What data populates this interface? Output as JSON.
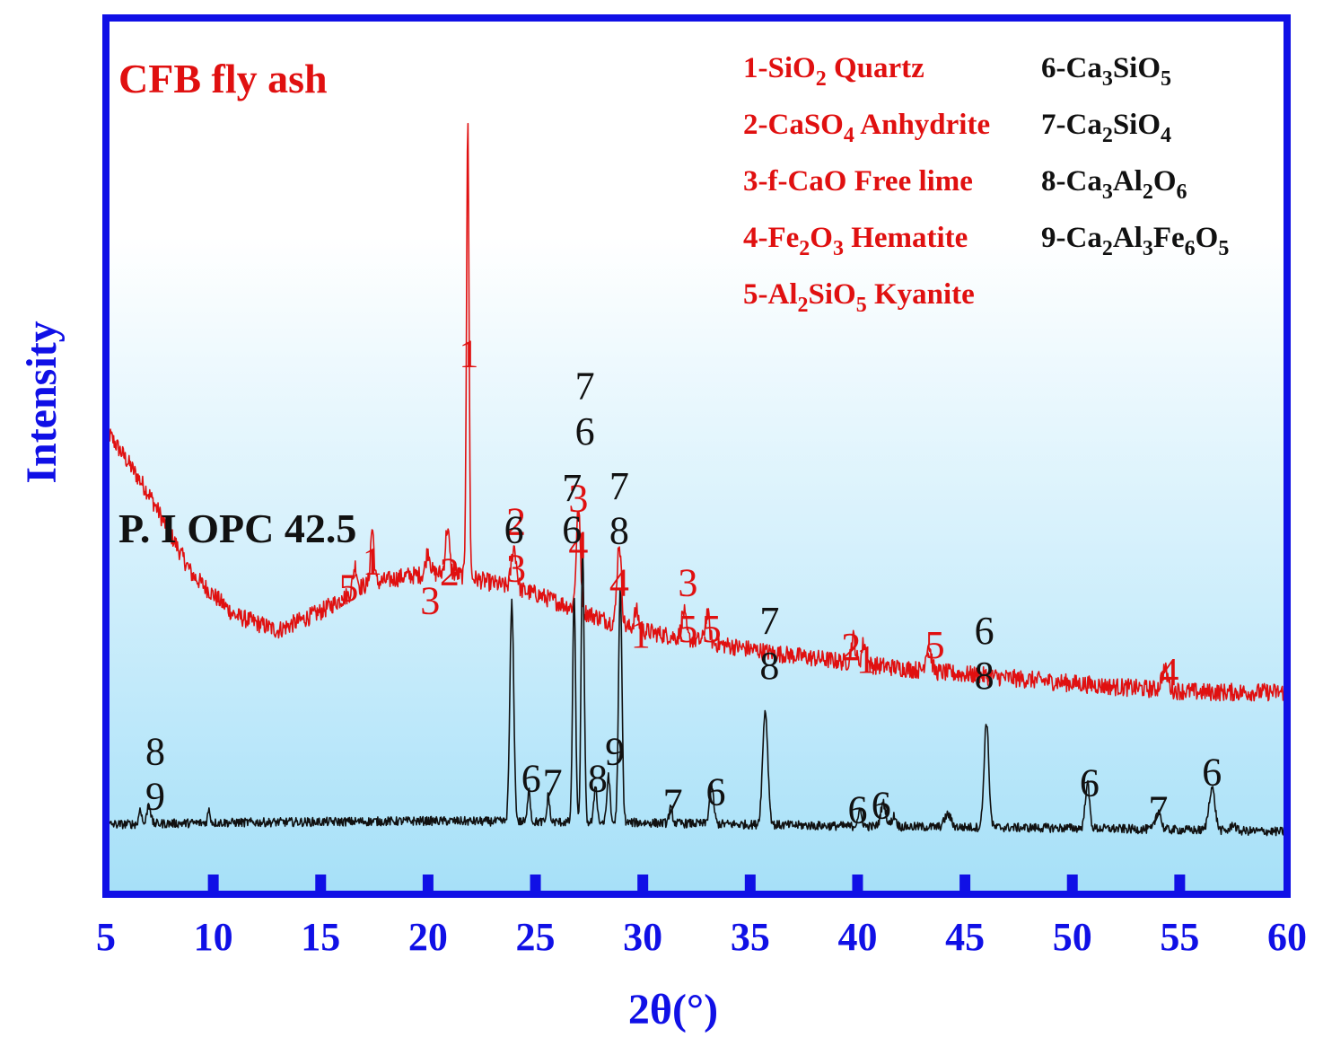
{
  "chart_data": {
    "type": "line",
    "xlabel": "2θ(°)",
    "ylabel": "Intensity",
    "xlim": [
      5,
      60
    ],
    "xticks": [
      5,
      10,
      15,
      20,
      25,
      30,
      35,
      40,
      45,
      50,
      55,
      60
    ],
    "grid": false,
    "colors": {
      "frame": "#1010e6",
      "fly_ash": "#e01010",
      "opc": "#111111",
      "bg_top": "#ffffff",
      "bg_bottom": "#a6e0f8"
    },
    "series": [
      {
        "name": "CFB fly ash",
        "color": "#e01010",
        "baseline": [
          [
            5,
            520
          ],
          [
            7,
            448
          ],
          [
            9,
            358
          ],
          [
            11,
            312
          ],
          [
            13,
            295
          ],
          [
            15,
            316
          ],
          [
            17,
            345
          ],
          [
            19,
            356
          ],
          [
            21,
            360
          ],
          [
            23,
            348
          ],
          [
            25,
            336
          ],
          [
            27,
            318
          ],
          [
            29,
            300
          ],
          [
            31,
            290
          ],
          [
            33,
            282
          ],
          [
            36,
            270
          ],
          [
            40,
            258
          ],
          [
            44,
            248
          ],
          [
            48,
            240
          ],
          [
            52,
            232
          ],
          [
            56,
            226
          ],
          [
            60,
            226
          ]
        ],
        "peaks": [
          {
            "x": 16.6,
            "h": 28,
            "w": 0.1
          },
          {
            "x": 17.4,
            "h": 62,
            "w": 0.08
          },
          {
            "x": 20.0,
            "h": 26,
            "w": 0.1
          },
          {
            "x": 20.9,
            "h": 50,
            "w": 0.09
          },
          {
            "x": 21.85,
            "h": 506,
            "w": 0.06
          },
          {
            "x": 24.0,
            "h": 46,
            "w": 0.12
          },
          {
            "x": 27.0,
            "h": 110,
            "w": 0.1
          },
          {
            "x": 28.9,
            "h": 92,
            "w": 0.1
          },
          {
            "x": 29.7,
            "h": 20,
            "w": 0.1
          },
          {
            "x": 31.9,
            "h": 30,
            "w": 0.1
          },
          {
            "x": 33.0,
            "h": 32,
            "w": 0.1
          },
          {
            "x": 39.8,
            "h": 28,
            "w": 0.1
          },
          {
            "x": 40.3,
            "h": 24,
            "w": 0.1
          },
          {
            "x": 43.3,
            "h": 30,
            "w": 0.12
          },
          {
            "x": 54.3,
            "h": 22,
            "w": 0.15
          }
        ],
        "noise": 10
      },
      {
        "name": "P. I OPC 42.5",
        "color": "#111111",
        "baseline": [
          [
            5,
            78
          ],
          [
            10,
            80
          ],
          [
            20,
            82
          ],
          [
            30,
            80
          ],
          [
            40,
            76
          ],
          [
            50,
            74
          ],
          [
            60,
            70
          ]
        ],
        "peaks": [
          {
            "x": 6.6,
            "h": 18,
            "w": 0.06
          },
          {
            "x": 7.0,
            "h": 24,
            "w": 0.08
          },
          {
            "x": 9.8,
            "h": 14,
            "w": 0.06
          },
          {
            "x": 23.9,
            "h": 244,
            "w": 0.09
          },
          {
            "x": 24.7,
            "h": 40,
            "w": 0.06
          },
          {
            "x": 25.6,
            "h": 30,
            "w": 0.06
          },
          {
            "x": 26.8,
            "h": 250,
            "w": 0.07
          },
          {
            "x": 27.2,
            "h": 305,
            "w": 0.07
          },
          {
            "x": 27.8,
            "h": 42,
            "w": 0.07
          },
          {
            "x": 28.4,
            "h": 54,
            "w": 0.07
          },
          {
            "x": 28.95,
            "h": 260,
            "w": 0.08
          },
          {
            "x": 31.3,
            "h": 16,
            "w": 0.08
          },
          {
            "x": 33.2,
            "h": 42,
            "w": 0.1
          },
          {
            "x": 35.7,
            "h": 128,
            "w": 0.12
          },
          {
            "x": 40.1,
            "h": 16,
            "w": 0.1
          },
          {
            "x": 41.2,
            "h": 26,
            "w": 0.12
          },
          {
            "x": 41.7,
            "h": 12,
            "w": 0.1
          },
          {
            "x": 44.2,
            "h": 14,
            "w": 0.15
          },
          {
            "x": 46.0,
            "h": 118,
            "w": 0.11
          },
          {
            "x": 50.7,
            "h": 50,
            "w": 0.1
          },
          {
            "x": 54.0,
            "h": 22,
            "w": 0.12
          },
          {
            "x": 56.5,
            "h": 48,
            "w": 0.14
          },
          {
            "x": 57.5,
            "h": 8,
            "w": 0.1
          }
        ],
        "noise": 5
      }
    ],
    "peak_labels": [
      {
        "text": "1",
        "x": 21.9,
        "y": 590,
        "color": "red"
      },
      {
        "text": "5",
        "x": 16.3,
        "y": 328,
        "color": "red"
      },
      {
        "text": "1",
        "x": 17.4,
        "y": 358,
        "color": "red"
      },
      {
        "text": "3",
        "x": 20.1,
        "y": 314,
        "color": "red"
      },
      {
        "text": "2",
        "x": 21.0,
        "y": 346,
        "color": "red"
      },
      {
        "text": "2",
        "x": 24.1,
        "y": 402,
        "color": "red"
      },
      {
        "text": "3",
        "x": 24.1,
        "y": 350,
        "color": "red"
      },
      {
        "text": "3",
        "x": 27.0,
        "y": 428,
        "color": "red"
      },
      {
        "text": "4",
        "x": 27.0,
        "y": 376,
        "color": "red"
      },
      {
        "text": "4",
        "x": 28.9,
        "y": 334,
        "color": "red"
      },
      {
        "text": "1",
        "x": 29.9,
        "y": 276,
        "color": "red"
      },
      {
        "text": "3",
        "x": 32.1,
        "y": 334,
        "color": "red"
      },
      {
        "text": "5",
        "x": 32.1,
        "y": 282,
        "color": "red"
      },
      {
        "text": "5",
        "x": 33.2,
        "y": 282,
        "color": "red"
      },
      {
        "text": "2",
        "x": 39.7,
        "y": 262,
        "color": "red"
      },
      {
        "text": "1",
        "x": 40.4,
        "y": 248,
        "color": "red"
      },
      {
        "text": "5",
        "x": 43.6,
        "y": 264,
        "color": "red"
      },
      {
        "text": "4",
        "x": 54.5,
        "y": 234,
        "color": "red"
      },
      {
        "text": "8",
        "x": 7.3,
        "y": 145,
        "color": "black"
      },
      {
        "text": "9",
        "x": 7.3,
        "y": 95,
        "color": "black"
      },
      {
        "text": "6",
        "x": 24.0,
        "y": 393,
        "color": "black"
      },
      {
        "text": "6",
        "x": 24.8,
        "y": 115,
        "color": "black"
      },
      {
        "text": "7",
        "x": 25.8,
        "y": 110,
        "color": "black"
      },
      {
        "text": "7",
        "x": 26.7,
        "y": 440,
        "color": "black"
      },
      {
        "text": "6",
        "x": 26.7,
        "y": 393,
        "color": "black"
      },
      {
        "text": "7",
        "x": 27.3,
        "y": 554,
        "color": "black"
      },
      {
        "text": "6",
        "x": 27.3,
        "y": 503,
        "color": "black"
      },
      {
        "text": "7",
        "x": 28.9,
        "y": 442,
        "color": "black"
      },
      {
        "text": "8",
        "x": 28.9,
        "y": 392,
        "color": "black"
      },
      {
        "text": "8",
        "x": 27.9,
        "y": 115,
        "color": "black"
      },
      {
        "text": "9",
        "x": 28.7,
        "y": 145,
        "color": "black"
      },
      {
        "text": "7",
        "x": 31.4,
        "y": 88,
        "color": "black"
      },
      {
        "text": "6",
        "x": 33.4,
        "y": 100,
        "color": "black"
      },
      {
        "text": "7",
        "x": 35.9,
        "y": 291,
        "color": "black"
      },
      {
        "text": "8",
        "x": 35.9,
        "y": 241,
        "color": "black"
      },
      {
        "text": "6",
        "x": 40.0,
        "y": 80,
        "color": "black"
      },
      {
        "text": "6",
        "x": 41.1,
        "y": 85,
        "color": "black"
      },
      {
        "text": "6",
        "x": 45.9,
        "y": 280,
        "color": "black"
      },
      {
        "text": "8",
        "x": 45.9,
        "y": 230,
        "color": "black"
      },
      {
        "text": "6",
        "x": 50.8,
        "y": 110,
        "color": "black"
      },
      {
        "text": "7",
        "x": 54.0,
        "y": 80,
        "color": "black"
      },
      {
        "text": "6",
        "x": 56.5,
        "y": 122,
        "color": "black"
      }
    ],
    "ylim": [
      0,
      980
    ]
  },
  "labels": {
    "fly_ash_title": "CFB fly ash",
    "opc_title": "P. I OPC 42.5"
  },
  "legend": {
    "left": [
      [
        {
          "t": "1-SiO"
        },
        {
          "t": "2",
          "sub": true
        },
        {
          "t": " Quartz"
        }
      ],
      [
        {
          "t": "2-CaSO"
        },
        {
          "t": "4",
          "sub": true
        },
        {
          "t": " Anhydrite"
        }
      ],
      [
        {
          "t": "3-f-CaO Free lime"
        }
      ],
      [
        {
          "t": "4-Fe"
        },
        {
          "t": "2",
          "sub": true
        },
        {
          "t": "O"
        },
        {
          "t": "3",
          "sub": true
        },
        {
          "t": "  Hematite"
        }
      ],
      [
        {
          "t": "5-Al"
        },
        {
          "t": "2",
          "sub": true
        },
        {
          "t": "SiO"
        },
        {
          "t": "5",
          "sub": true
        },
        {
          "t": " Kyanite"
        }
      ]
    ],
    "right": [
      [
        {
          "t": "6-Ca"
        },
        {
          "t": "3",
          "sub": true
        },
        {
          "t": "SiO"
        },
        {
          "t": "5",
          "sub": true
        }
      ],
      [
        {
          "t": "7-Ca"
        },
        {
          "t": "2",
          "sub": true
        },
        {
          "t": "SiO"
        },
        {
          "t": "4",
          "sub": true
        }
      ],
      [
        {
          "t": "8-Ca"
        },
        {
          "t": "3",
          "sub": true
        },
        {
          "t": "Al"
        },
        {
          "t": "2",
          "sub": true
        },
        {
          "t": "O"
        },
        {
          "t": "6",
          "sub": true
        }
      ],
      [
        {
          "t": "9-Ca"
        },
        {
          "t": "2",
          "sub": true
        },
        {
          "t": "Al"
        },
        {
          "t": "3",
          "sub": true
        },
        {
          "t": "Fe"
        },
        {
          "t": "6",
          "sub": true
        },
        {
          "t": "O"
        },
        {
          "t": "5",
          "sub": true
        }
      ]
    ]
  }
}
